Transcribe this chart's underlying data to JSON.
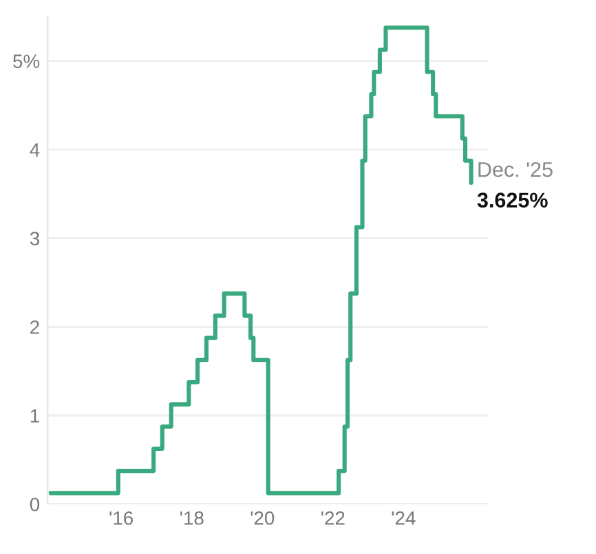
{
  "chart_data": {
    "type": "step",
    "x": [
      "2014-01",
      "2015-12",
      "2016-12",
      "2017-03",
      "2017-06",
      "2017-12",
      "2018-03",
      "2018-06",
      "2018-09",
      "2018-12",
      "2019-07",
      "2019-09",
      "2019-10",
      "2020-03",
      "2022-03",
      "2022-05",
      "2022-06",
      "2022-07",
      "2022-09",
      "2022-11",
      "2022-12",
      "2023-02",
      "2023-03",
      "2023-05",
      "2023-07",
      "2024-09",
      "2024-11",
      "2024-12",
      "2025-09",
      "2025-10",
      "2025-12"
    ],
    "series": [
      {
        "color": "#3aa97f",
        "values": [
          0.125,
          0.375,
          0.625,
          0.875,
          1.125,
          1.375,
          1.625,
          1.875,
          2.125,
          2.375,
          2.125,
          1.875,
          1.625,
          0.125,
          0.375,
          0.875,
          1.625,
          2.375,
          3.125,
          3.875,
          4.375,
          4.625,
          4.875,
          5.125,
          5.375,
          4.875,
          4.625,
          4.375,
          4.125,
          3.875,
          3.625
        ]
      }
    ],
    "xlim": [
      "2013-12",
      "2026-06"
    ],
    "xticks": [
      {
        "value": "2016-01",
        "label": "'16"
      },
      {
        "value": "2018-01",
        "label": "'18"
      },
      {
        "value": "2020-01",
        "label": "'20"
      },
      {
        "value": "2022-01",
        "label": "'22"
      },
      {
        "value": "2024-01",
        "label": "'24"
      }
    ],
    "ylim": [
      0,
      5.5
    ],
    "yticks": [
      0,
      1,
      2,
      3,
      4,
      {
        "value": 5,
        "label": "5%"
      }
    ],
    "grid": "y",
    "annotations": [
      {
        "text": "Dec. '25",
        "x": "2025-12",
        "y": 3.625
      },
      {
        "text": "3.625%",
        "x": "2025-12",
        "y": 3.625
      }
    ]
  }
}
